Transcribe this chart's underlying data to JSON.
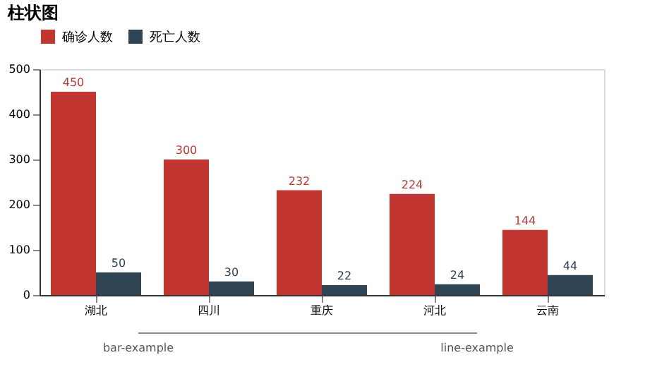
{
  "chart_data": {
    "type": "bar",
    "title": "柱状图",
    "categories": [
      "湖北",
      "四川",
      "重庆",
      "河北",
      "云南"
    ],
    "series": [
      {
        "name": "确诊人数",
        "color": "#c23531",
        "values": [
          450,
          300,
          232,
          224,
          144
        ]
      },
      {
        "name": "死亡人数",
        "color": "#2f4554",
        "values": [
          50,
          30,
          22,
          24,
          44
        ]
      }
    ],
    "ylim": [
      0,
      500
    ],
    "yticks": [
      0,
      100,
      200,
      300,
      400,
      500
    ],
    "data_labels": true,
    "grid": false,
    "legend": "top",
    "annotations": [
      "bar-example",
      "line-example"
    ]
  }
}
